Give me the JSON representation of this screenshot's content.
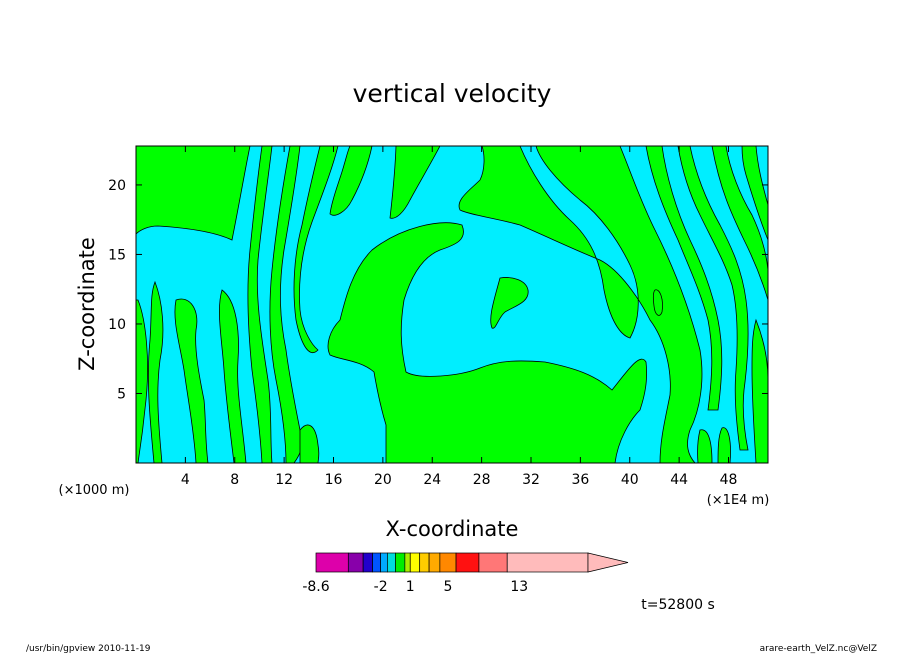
{
  "chart_data": {
    "type": "heatmap",
    "title": "vertical velocity",
    "xlabel": "X-coordinate",
    "ylabel": "Z-coordinate",
    "x_unit_left": "(×1000 m)",
    "x_unit_right": "(×1E4 m)",
    "x_ticks": [
      "4",
      "8",
      "12",
      "16",
      "20",
      "24",
      "28",
      "32",
      "36",
      "40",
      "44",
      "48"
    ],
    "x_tick_values": [
      4,
      8,
      12,
      16,
      20,
      24,
      28,
      32,
      36,
      40,
      44,
      48
    ],
    "y_ticks": [
      "5",
      "10",
      "15",
      "20"
    ],
    "y_tick_values": [
      5,
      10,
      15,
      20
    ],
    "xlim": [
      0,
      51.2
    ],
    "ylim": [
      0,
      22.8
    ],
    "field_colors": {
      "positive": "#00ff00",
      "negative": "#00eeff",
      "contour": "#000000"
    },
    "colorbar": {
      "labels": [
        {
          "text": "-8.6",
          "pos": 0
        },
        {
          "text": "-2",
          "pos": 0.2376
        },
        {
          "text": "1",
          "pos": 0.3465
        },
        {
          "text": "5",
          "pos": 0.4851
        },
        {
          "text": "13",
          "pos": 0.7475
        }
      ],
      "colors": [
        "#dd00aa",
        "#8800aa",
        "#2200cc",
        "#0055ff",
        "#00aaff",
        "#00dddd",
        "#00ee00",
        "#aaee00",
        "#ffff00",
        "#ffcc00",
        "#ffaa00",
        "#ff8800",
        "#ff1111",
        "#ff7777",
        "#ffbbbb"
      ],
      "bounds": [
        0,
        0.1188,
        0.1733,
        0.2079,
        0.2376,
        0.2624,
        0.2921,
        0.3267,
        0.3465,
        0.3812,
        0.4158,
        0.4554,
        0.5149,
        0.599,
        0.703,
        1.0
      ]
    },
    "time_label": "t=52800  s",
    "footer_left": "/usr/bin/gpview   2010-11-19",
    "footer_right": "arare-earth_VelZ.nc@VelZ"
  }
}
